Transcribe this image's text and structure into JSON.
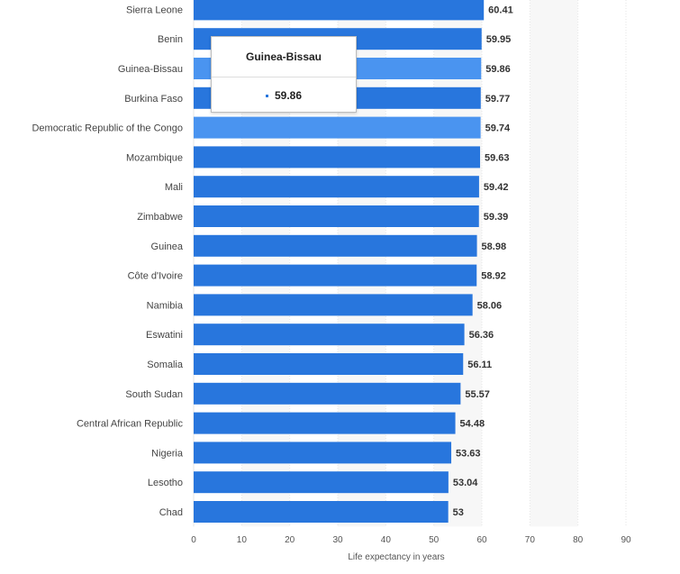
{
  "chart_data": {
    "type": "bar",
    "orientation": "horizontal",
    "categories": [
      "Sierra Leone",
      "Benin",
      "Guinea-Bissau",
      "Burkina Faso",
      "Democratic Republic of the Congo",
      "Mozambique",
      "Mali",
      "Zimbabwe",
      "Guinea",
      "Côte d'Ivoire",
      "Namibia",
      "Eswatini",
      "Somalia",
      "South Sudan",
      "Central African Republic",
      "Nigeria",
      "Lesotho",
      "Chad"
    ],
    "values": [
      60.41,
      59.95,
      59.86,
      59.77,
      59.74,
      59.63,
      59.42,
      59.39,
      58.98,
      58.92,
      58.06,
      56.36,
      56.11,
      55.57,
      54.48,
      53.63,
      53.04,
      53
    ],
    "value_labels": [
      "60.41",
      "59.95",
      "59.86",
      "59.77",
      "59.74",
      "59.63",
      "59.42",
      "59.39",
      "58.98",
      "58.92",
      "58.06",
      "56.36",
      "56.11",
      "55.57",
      "54.48",
      "53.63",
      "53.04",
      "53"
    ],
    "highlighted": [
      "Guinea-Bissau",
      "Democratic Republic of the Congo"
    ],
    "xlabel": "Life expectancy in years",
    "xlim": [
      0,
      90
    ],
    "xticks": [
      0,
      10,
      20,
      30,
      40,
      50,
      60,
      70,
      80,
      90
    ],
    "grid": true,
    "colors": {
      "bar": "#2876dd",
      "bar_highlight": "#4a94f0",
      "band": "#f7f7f7",
      "grid": "#e6e6e6"
    }
  },
  "tooltip": {
    "title": "Guinea-Bissau",
    "value": "59.86"
  }
}
